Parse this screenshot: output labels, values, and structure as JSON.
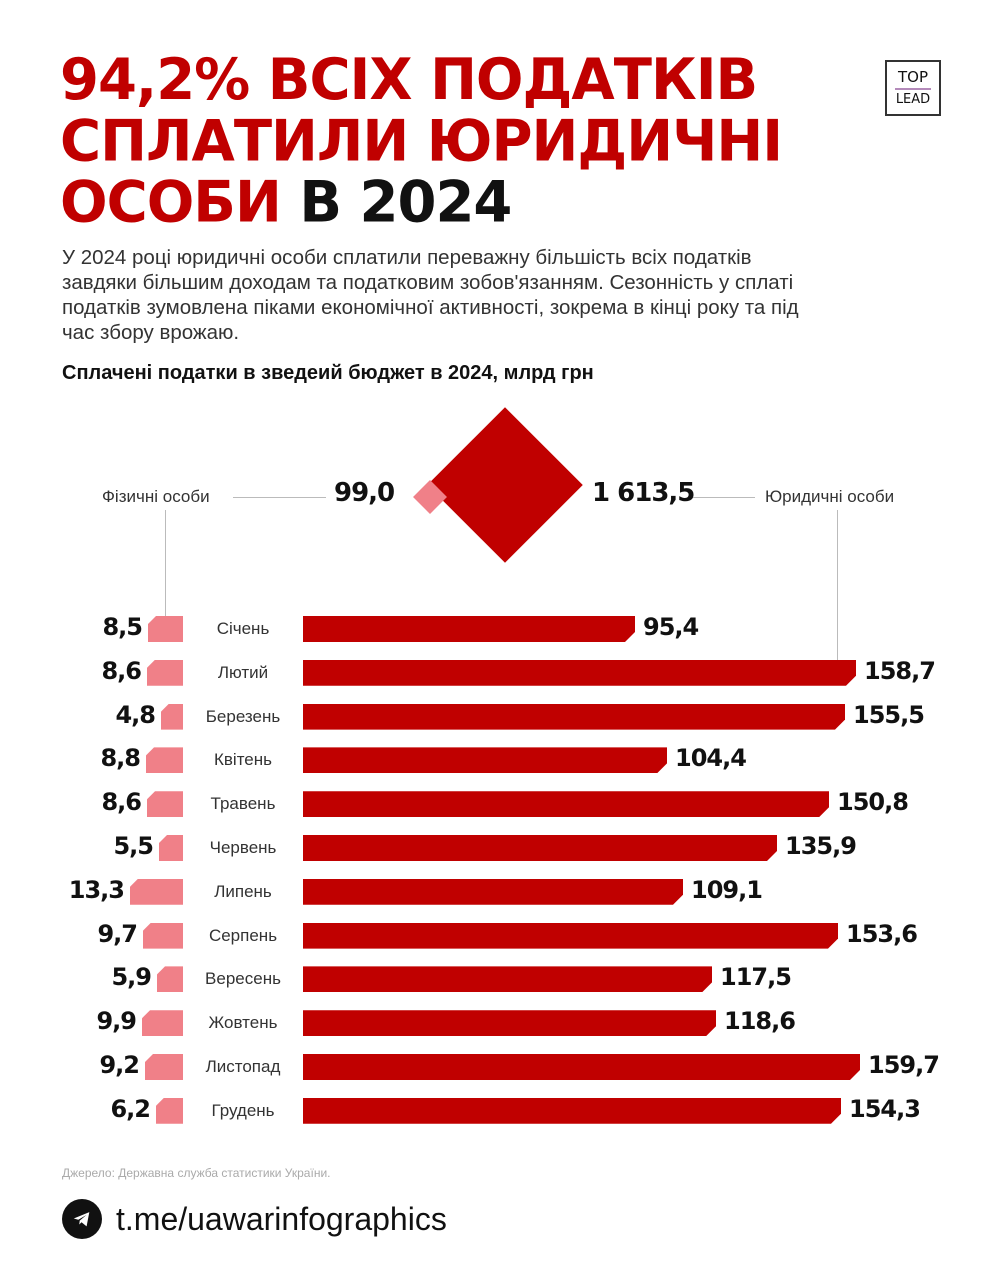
{
  "header": {
    "title_red": "94,2% ВСІХ ПОДАТКІВ СПЛАТИЛИ ЮРИДИЧНІ ОСОБИ",
    "title_line1": "94,2% ВСІХ ПОДАТКІВ",
    "title_line2": "СПЛАТИЛИ ЮРИДИЧНІ",
    "title_line3_red": "ОСОБИ",
    "title_line3_black": " В 2024",
    "logo_top": "TOP",
    "logo_bottom": "LEAD"
  },
  "intro": "У 2024 році юридичні особи сплатили переважну більшість всіх податків завдяки більшим доходам та податковим зобов'язанням. Сезонність у сплаті податків зумовлена піками економічної активності, зокрема в кінці року та під час збору врожаю.",
  "subtitle": "Сплачені податки в зведеий бюджет в 2024, млрд грн",
  "totals": {
    "individuals_label": "Фізичні особи",
    "individuals_value": "99,0",
    "legal_label": "Юридичні особи",
    "legal_value": "1 613,5"
  },
  "colors": {
    "legal": "#c00000",
    "individuals": "#f08088"
  },
  "chart_data": {
    "type": "bar",
    "title": "Сплачені податки в зведеий бюджет в 2024, млрд грн",
    "xlabel": "",
    "ylabel": "млрд грн",
    "categories": [
      "Січень",
      "Лютий",
      "Березень",
      "Квітень",
      "Травень",
      "Червень",
      "Липень",
      "Серпень",
      "Вересень",
      "Жовтень",
      "Листопад",
      "Грудень"
    ],
    "series": [
      {
        "name": "Фізичні особи",
        "total": 99.0,
        "values": [
          8.5,
          8.6,
          4.8,
          8.8,
          8.6,
          5.5,
          13.3,
          9.7,
          5.9,
          9.9,
          9.2,
          6.2
        ]
      },
      {
        "name": "Юридичні особи",
        "total": 1613.5,
        "values": [
          95.4,
          158.7,
          155.5,
          104.4,
          150.8,
          135.9,
          109.1,
          153.6,
          117.5,
          118.6,
          159.7,
          154.3
        ]
      }
    ],
    "labels": {
      "individuals": [
        "8,5",
        "8,6",
        "4,8",
        "8,8",
        "8,6",
        "5,5",
        "13,3",
        "9,7",
        "5,9",
        "9,9",
        "9,2",
        "6,2"
      ],
      "legal": [
        "95,4",
        "158,7",
        "155,5",
        "104,4",
        "150,8",
        "135,9",
        "109,1",
        "153,6",
        "117,5",
        "118,6",
        "159,7",
        "154,3"
      ]
    },
    "layout": "diverging horizontal bars; individuals left (pink), legal entities right (red)",
    "grid": false
  },
  "footer": {
    "source": "Джерело: Державна служба статистики України.",
    "telegram_link": "t.me/uawarinfographics",
    "telegram_icon": "telegram-icon"
  }
}
